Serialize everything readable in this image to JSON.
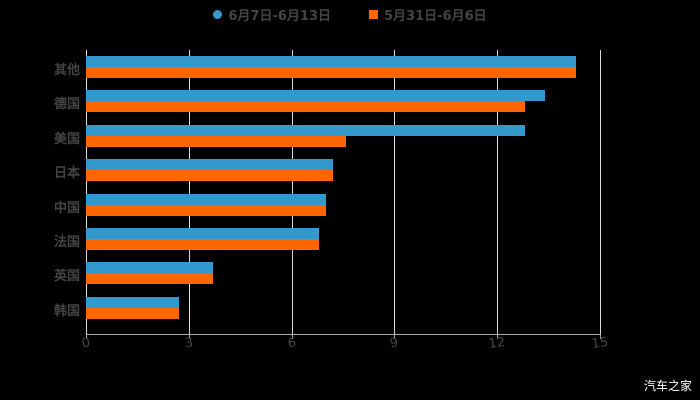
{
  "chart_data": {
    "type": "bar",
    "orientation": "horizontal",
    "title": "",
    "xlabel": "",
    "ylabel": "",
    "xlim": [
      0,
      15
    ],
    "x_ticks": [
      "0",
      "3",
      "6",
      "9",
      "12",
      "15"
    ],
    "grid": true,
    "legend_position": "top",
    "categories": [
      "其他",
      "德国",
      "美国",
      "日本",
      "中国",
      "法国",
      "英国",
      "韩国"
    ],
    "series": [
      {
        "name": "6月7日-6月13日",
        "color": "#3399cc",
        "values": [
          14.3,
          13.4,
          12.8,
          7.2,
          7.0,
          6.8,
          3.7,
          2.7
        ]
      },
      {
        "name": "5月31日-6月6日",
        "color": "#ff6600",
        "values": [
          14.3,
          12.8,
          7.6,
          7.2,
          7.0,
          6.8,
          3.7,
          2.7
        ]
      }
    ]
  },
  "legend": {
    "items": [
      {
        "label": "6月7日-6月13日",
        "color": "#3399cc"
      },
      {
        "label": "5月31日-6月6日",
        "color": "#ff6600"
      }
    ]
  },
  "watermark": "汽车之家"
}
